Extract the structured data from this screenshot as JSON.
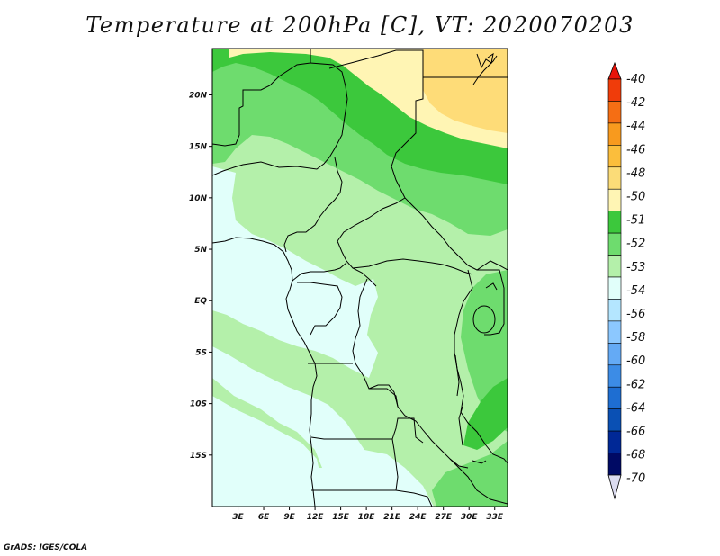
{
  "title": "Temperature at 200hPa [C], VT: 2020070203",
  "credit": "GrADS: IGES/COLA",
  "map": {
    "lon_range": [
      0,
      34.5
    ],
    "lat_range": [
      -20,
      24.5
    ],
    "lat_ticks": [
      {
        "value": 20,
        "label": "20N"
      },
      {
        "value": 15,
        "label": "15N"
      },
      {
        "value": 10,
        "label": "10N"
      },
      {
        "value": 5,
        "label": "5N"
      },
      {
        "value": 0,
        "label": "EQ"
      },
      {
        "value": -5,
        "label": "5S"
      },
      {
        "value": -10,
        "label": "10S"
      },
      {
        "value": -15,
        "label": "15S"
      }
    ],
    "lon_ticks": [
      {
        "value": 3,
        "label": "3E"
      },
      {
        "value": 6,
        "label": "6E"
      },
      {
        "value": 9,
        "label": "9E"
      },
      {
        "value": 12,
        "label": "12E"
      },
      {
        "value": 15,
        "label": "15E"
      },
      {
        "value": 18,
        "label": "18E"
      },
      {
        "value": 21,
        "label": "21E"
      },
      {
        "value": 24,
        "label": "24E"
      },
      {
        "value": 27,
        "label": "27E"
      },
      {
        "value": 30,
        "label": "30E"
      },
      {
        "value": 33,
        "label": "33E"
      }
    ]
  },
  "colorbar": {
    "labels": [
      "-40",
      "-42",
      "-44",
      "-46",
      "-48",
      "-50",
      "-51",
      "-52",
      "-53",
      "-54",
      "-56",
      "-58",
      "-60",
      "-62",
      "-64",
      "-66",
      "-68",
      "-70"
    ],
    "colors": {
      "top_triangle": "#e8140a",
      "bottom_triangle": "#dcdcf0",
      "levels": [
        "#f03c0a",
        "#f56e14",
        "#f89a1e",
        "#fbbe3c",
        "#fbdc78",
        "#fff5b4",
        "#3cc83c",
        "#6edc6e",
        "#b4f0aa",
        "#e1fffa",
        "#b4e6ff",
        "#8cc8ff",
        "#64aaf5",
        "#3c8ce6",
        "#1e6ed2",
        "#0a50b4",
        "#002896",
        "#000a64"
      ]
    }
  },
  "field_colors": {
    "gt_minus50": "#fedc78",
    "minus50_minus51": "#fff5b4",
    "minus51_minus52": "#3cc83c",
    "minus52_minus53": "#6edc6e",
    "minus53_minus54": "#b4f0aa",
    "minus54_minus56": "#e1fffa"
  }
}
